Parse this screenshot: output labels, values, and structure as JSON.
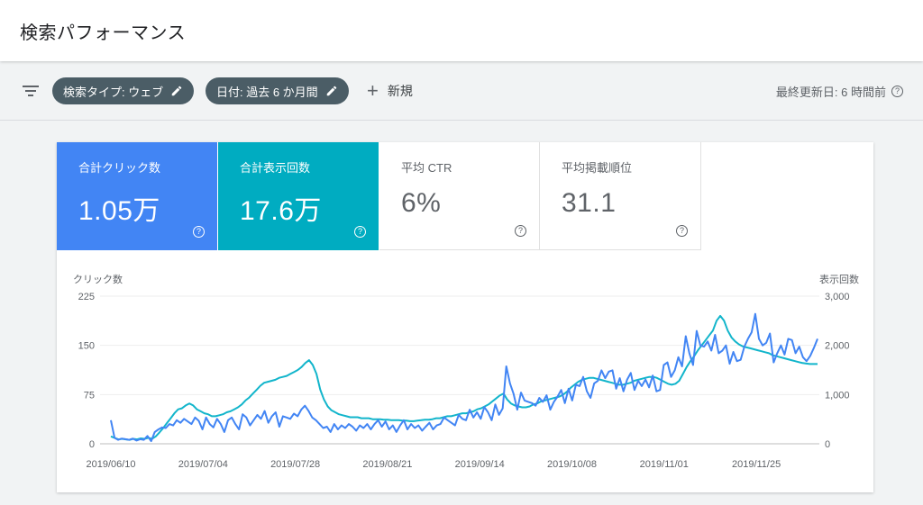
{
  "header": {
    "title": "検索パフォーマンス"
  },
  "filters": {
    "chips": [
      {
        "label": "検索タイプ: ウェブ"
      },
      {
        "label": "日付: 過去 6 か月間"
      }
    ],
    "new_label": "新規",
    "updated": "最終更新日: 6 時間前"
  },
  "metrics": [
    {
      "label": "合計クリック数",
      "value": "1.05万",
      "color": "#4285f4"
    },
    {
      "label": "合計表示回数",
      "value": "17.6万",
      "color": "#00acc1"
    },
    {
      "label": "平均 CTR",
      "value": "6%"
    },
    {
      "label": "平均掲載順位",
      "value": "31.1"
    }
  ],
  "chart_data": {
    "type": "line",
    "left_axis_label": "クリック数",
    "right_axis_label": "表示回数",
    "left_ylim": [
      0,
      225
    ],
    "right_ylim": [
      0,
      3000
    ],
    "left_ticks": [
      "0",
      "75",
      "150",
      "225"
    ],
    "right_ticks": [
      "0",
      "1,000",
      "2,000",
      "3,000"
    ],
    "x_ticks": [
      "2019/06/10",
      "2019/07/04",
      "2019/07/28",
      "2019/08/21",
      "2019/09/14",
      "2019/10/08",
      "2019/11/01",
      "2019/11/25"
    ],
    "grid": true,
    "series": [
      {
        "name": "クリック数",
        "color": "#4285f4",
        "axis": "left",
        "values": [
          36,
          9,
          6,
          8,
          7,
          6,
          8,
          5,
          7,
          6,
          12,
          4,
          18,
          22,
          25,
          24,
          30,
          28,
          36,
          32,
          38,
          34,
          30,
          40,
          35,
          22,
          40,
          30,
          25,
          38,
          30,
          18,
          36,
          40,
          30,
          22,
          45,
          40,
          28,
          36,
          44,
          38,
          50,
          32,
          42,
          48,
          26,
          42,
          40,
          38,
          46,
          42,
          52,
          58,
          50,
          40,
          36,
          30,
          24,
          26,
          18,
          30,
          22,
          28,
          24,
          30,
          26,
          20,
          28,
          24,
          30,
          22,
          30,
          36,
          26,
          34,
          22,
          28,
          18,
          28,
          36,
          22,
          30,
          24,
          28,
          20,
          26,
          32,
          22,
          28,
          30,
          40,
          36,
          32,
          28,
          44,
          38,
          36,
          52,
          40,
          48,
          38,
          56,
          48,
          36,
          60,
          44,
          54,
          118,
          92,
          76,
          52,
          78,
          66,
          64,
          62,
          58,
          70,
          64,
          74,
          52,
          64,
          72,
          82,
          62,
          84,
          66,
          90,
          88,
          102,
          80,
          70,
          92,
          96,
          112,
          100,
          110,
          112,
          84,
          100,
          80,
          98,
          108,
          82,
          96,
          88,
          98,
          86,
          104,
          80,
          82,
          120,
          124,
          102,
          112,
          132,
          118,
          164,
          138,
          120,
          172,
          150,
          148,
          156,
          142,
          166,
          138,
          142,
          150,
          122,
          140,
          126,
          128,
          148,
          160,
          170,
          198,
          160,
          150,
          154,
          168,
          124,
          138,
          150,
          136,
          160,
          158,
          138,
          148,
          132,
          126,
          134,
          146,
          160
        ]
      },
      {
        "name": "表示回数",
        "color": "#12b5cb",
        "axis": "right",
        "values": [
          150,
          120,
          90,
          100,
          90,
          80,
          100,
          90,
          110,
          100,
          120,
          100,
          150,
          230,
          320,
          420,
          520,
          620,
          700,
          720,
          780,
          820,
          780,
          700,
          660,
          620,
          600,
          560,
          560,
          580,
          600,
          640,
          660,
          700,
          740,
          800,
          880,
          940,
          1020,
          1100,
          1180,
          1240,
          1260,
          1280,
          1300,
          1340,
          1360,
          1380,
          1420,
          1460,
          1500,
          1560,
          1640,
          1700,
          1600,
          1420,
          1100,
          900,
          760,
          680,
          640,
          600,
          580,
          560,
          540,
          540,
          540,
          520,
          520,
          520,
          500,
          500,
          500,
          490,
          490,
          480,
          480,
          480,
          470,
          470,
          460,
          460,
          470,
          480,
          490,
          490,
          500,
          520,
          520,
          540,
          560,
          560,
          580,
          600,
          620,
          620,
          640,
          660,
          700,
          720,
          760,
          800,
          860,
          920,
          980,
          1020,
          900,
          820,
          780,
          760,
          740,
          740,
          760,
          800,
          820,
          860,
          880,
          900,
          920,
          940,
          960,
          1000,
          1060,
          1140,
          1200,
          1260,
          1300,
          1320,
          1340,
          1340,
          1320,
          1300,
          1280,
          1260,
          1240,
          1220,
          1200,
          1200,
          1220,
          1240,
          1280,
          1300,
          1320,
          1340,
          1360,
          1360,
          1340,
          1300,
          1260,
          1220,
          1200,
          1220,
          1280,
          1420,
          1560,
          1680,
          1780,
          1900,
          2000,
          2100,
          2200,
          2300,
          2500,
          2600,
          2500,
          2300,
          2160,
          2080,
          2020,
          1980,
          1960,
          1940,
          1920,
          1900,
          1880,
          1860,
          1840,
          1800,
          1780,
          1760,
          1740,
          1720,
          1700,
          1680,
          1660,
          1640,
          1630,
          1620,
          1620,
          1620
        ]
      }
    ]
  }
}
